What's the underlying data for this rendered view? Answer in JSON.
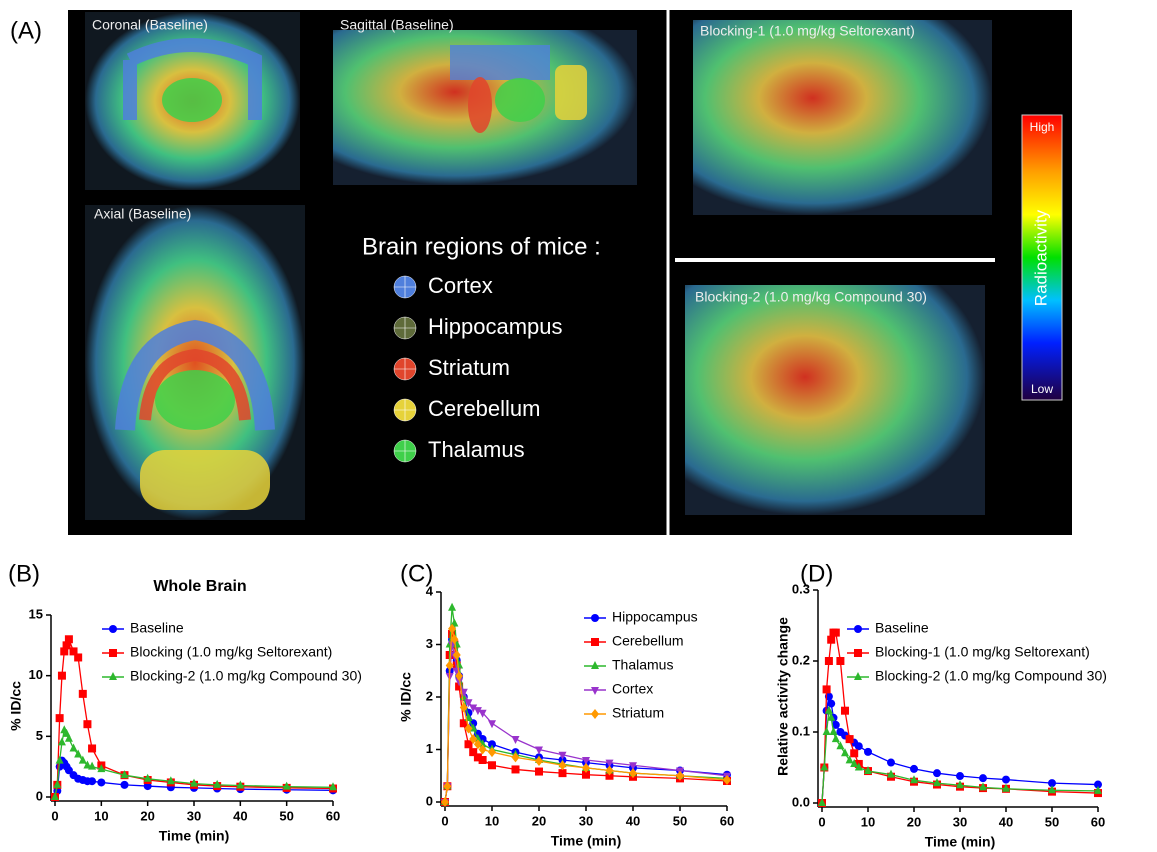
{
  "panel_labels": [
    "(A)",
    "(B)",
    "(C)",
    "(D)"
  ],
  "images": {
    "coronal": "Coronal (Baseline)",
    "sagittal": "Sagittal (Baseline)",
    "axial": "Axial (Baseline)",
    "blocking1": "Blocking-1 (1.0 mg/kg Seltorexant)",
    "blocking2": "Blocking-2 (1.0 mg/kg Compound 30)"
  },
  "regions": {
    "title": "Brain regions of mice :",
    "items": [
      {
        "name": "Cortex",
        "color": "#4f7fdc"
      },
      {
        "name": "Hippocampus",
        "color": "#5f6b3a"
      },
      {
        "name": "Striatum",
        "color": "#e0452c"
      },
      {
        "name": "Cerebellum",
        "color": "#e6d23a"
      },
      {
        "name": "Thalamus",
        "color": "#3fd04a"
      }
    ]
  },
  "colorbar": {
    "high": "High",
    "label": "Radioactivity",
    "low": "Low"
  },
  "chart_data": [
    {
      "type": "line",
      "title": "Whole Brain",
      "xlabel": "Time (min)",
      "ylabel": "% ID/cc",
      "x": [
        0,
        0.5,
        1,
        1.5,
        2,
        2.5,
        3,
        4,
        5,
        6,
        7,
        8,
        10,
        15,
        20,
        25,
        30,
        35,
        40,
        50,
        60
      ],
      "xlim": [
        0,
        60
      ],
      "xticks": [
        0,
        10,
        20,
        30,
        40,
        50,
        60
      ],
      "ylim": [
        0,
        15
      ],
      "yticks": [
        0,
        5,
        10,
        15
      ],
      "series": [
        {
          "name": "Baseline",
          "color": "#0000ff",
          "marker": "circle",
          "values": [
            0,
            0.5,
            2.5,
            3,
            2.8,
            2.5,
            2.2,
            1.8,
            1.5,
            1.4,
            1.3,
            1.3,
            1.2,
            1.0,
            0.9,
            0.8,
            0.75,
            0.7,
            0.65,
            0.6,
            0.55
          ]
        },
        {
          "name": "Blocking (1.0 mg/kg Seltorexant)",
          "color": "#ff0000",
          "marker": "square",
          "values": [
            0,
            1,
            6.5,
            10,
            12,
            12.5,
            13,
            12,
            11.5,
            8.5,
            6,
            4,
            2.6,
            1.8,
            1.4,
            1.2,
            1.0,
            0.9,
            0.85,
            0.75,
            0.7
          ]
        },
        {
          "name": "Blocking-2 (1.0 mg/kg Compound 30)",
          "color": "#2db82d",
          "marker": "triangle",
          "values": [
            0,
            1,
            3,
            4.5,
            5.5,
            5.2,
            4.8,
            4,
            3.5,
            3,
            2.6,
            2.5,
            2.3,
            1.8,
            1.5,
            1.3,
            1.1,
            1.0,
            0.95,
            0.85,
            0.8
          ]
        }
      ]
    },
    {
      "type": "line",
      "xlabel": "Time (min)",
      "ylabel": "% ID/cc",
      "x": [
        0,
        0.5,
        1,
        1.5,
        2,
        2.5,
        3,
        4,
        5,
        6,
        7,
        8,
        10,
        15,
        20,
        25,
        30,
        35,
        40,
        50,
        60
      ],
      "xlim": [
        0,
        60
      ],
      "xticks": [
        0,
        10,
        20,
        30,
        40,
        50,
        60
      ],
      "ylim": [
        0,
        4
      ],
      "yticks": [
        0,
        1,
        2,
        3,
        4
      ],
      "series": [
        {
          "name": "Hippocampus",
          "color": "#0000ff",
          "marker": "circle",
          "values": [
            0,
            0.3,
            2.5,
            3.1,
            3.0,
            2.7,
            2.4,
            2.0,
            1.7,
            1.5,
            1.3,
            1.2,
            1.1,
            0.95,
            0.85,
            0.8,
            0.75,
            0.7,
            0.65,
            0.6,
            0.52
          ]
        },
        {
          "name": "Cerebellum",
          "color": "#ff0000",
          "marker": "square",
          "values": [
            0,
            0.3,
            2.8,
            3.2,
            3.0,
            2.6,
            2.2,
            1.5,
            1.1,
            0.95,
            0.85,
            0.8,
            0.7,
            0.62,
            0.58,
            0.55,
            0.52,
            0.5,
            0.48,
            0.45,
            0.4
          ]
        },
        {
          "name": "Thalamus",
          "color": "#2db82d",
          "marker": "triangle",
          "values": [
            0,
            0.3,
            3.0,
            3.7,
            3.4,
            3.0,
            2.6,
            2.0,
            1.6,
            1.4,
            1.2,
            1.1,
            1.0,
            0.9,
            0.8,
            0.72,
            0.65,
            0.6,
            0.55,
            0.5,
            0.45
          ]
        },
        {
          "name": "Cortex",
          "color": "#9933cc",
          "marker": "triangle-down",
          "values": [
            0,
            0.3,
            2.4,
            3.0,
            2.8,
            2.5,
            2.3,
            2.1,
            1.9,
            1.8,
            1.75,
            1.7,
            1.5,
            1.2,
            1.0,
            0.9,
            0.8,
            0.75,
            0.7,
            0.6,
            0.5
          ]
        },
        {
          "name": "Striatum",
          "color": "#ff9900",
          "marker": "diamond",
          "values": [
            0,
            0.3,
            2.6,
            3.3,
            3.1,
            2.8,
            2.4,
            1.8,
            1.4,
            1.2,
            1.1,
            1.0,
            0.95,
            0.85,
            0.78,
            0.7,
            0.65,
            0.6,
            0.55,
            0.5,
            0.42
          ]
        }
      ]
    },
    {
      "type": "line",
      "xlabel": "Time (min)",
      "ylabel": "Relative activity change",
      "x": [
        0,
        0.5,
        1,
        1.5,
        2,
        2.5,
        3,
        4,
        5,
        6,
        7,
        8,
        10,
        15,
        20,
        25,
        30,
        35,
        40,
        50,
        60
      ],
      "xlim": [
        0,
        60
      ],
      "xticks": [
        0,
        10,
        20,
        30,
        40,
        50,
        60
      ],
      "ylim": [
        0,
        0.3
      ],
      "yticks": [
        {
          "value": 0,
          "label": "0.0"
        },
        0.1,
        0.2,
        0.3
      ],
      "series": [
        {
          "name": "Baseline",
          "color": "#0000ff",
          "marker": "circle",
          "values": [
            0,
            0.05,
            0.13,
            0.15,
            0.14,
            0.12,
            0.11,
            0.1,
            0.095,
            0.09,
            0.085,
            0.08,
            0.072,
            0.057,
            0.048,
            0.042,
            0.038,
            0.035,
            0.033,
            0.028,
            0.026
          ]
        },
        {
          "name": "Blocking-1 (1.0 mg/kg Seltorexant)",
          "color": "#ff0000",
          "marker": "square",
          "values": [
            0,
            0.05,
            0.16,
            0.2,
            0.23,
            0.24,
            0.24,
            0.2,
            0.13,
            0.09,
            0.07,
            0.055,
            0.045,
            0.037,
            0.03,
            0.026,
            0.023,
            0.021,
            0.02,
            0.016,
            0.014
          ]
        },
        {
          "name": "Blocking-2 (1.0 mg/kg Compound 30)",
          "color": "#2db82d",
          "marker": "triangle",
          "values": [
            0,
            0.05,
            0.1,
            0.13,
            0.12,
            0.1,
            0.09,
            0.08,
            0.07,
            0.06,
            0.055,
            0.05,
            0.045,
            0.04,
            0.032,
            0.028,
            0.025,
            0.022,
            0.02,
            0.018,
            0.017
          ]
        }
      ]
    }
  ]
}
